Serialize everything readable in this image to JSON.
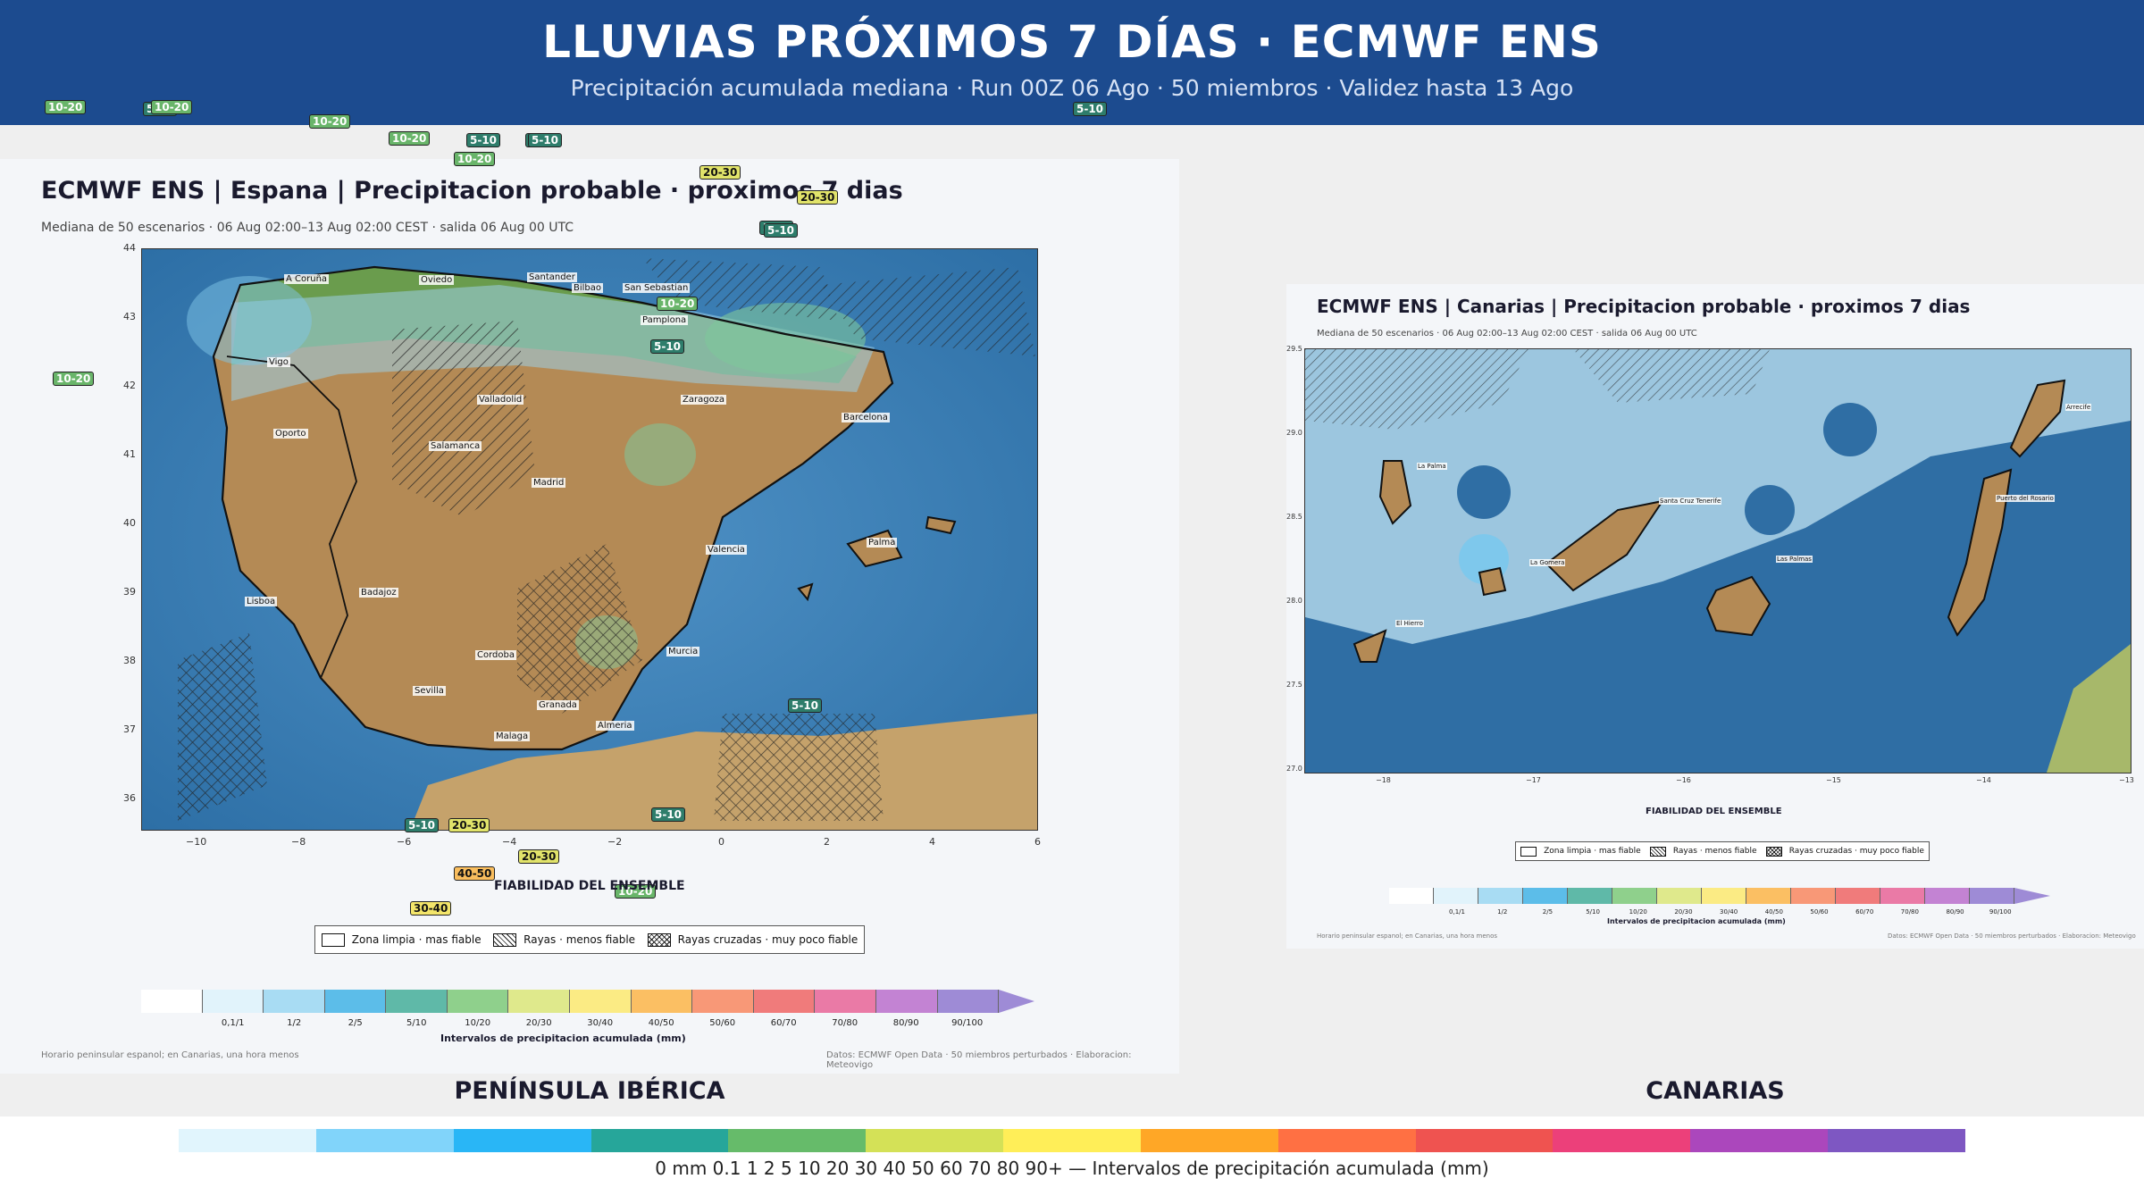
{
  "header": {
    "title": "LLUVIAS PRÓXIMOS 7 DÍAS · ECMWF ENS",
    "subtitle": "Precipitación acumulada mediana · Run 00Z 06 Ago · 50 miembros · Validez hasta 13 Ago"
  },
  "iberia": {
    "title": "ECMWF ENS | Espana | Precipitacion probable · proximos 7 dias",
    "subtitle": "Mediana de 50 escenarios · 06 Aug 02:00–13 Aug 02:00 CEST · salida 06 Aug 00 UTC",
    "lat_ticks": [
      "44",
      "43",
      "42",
      "41",
      "40",
      "39",
      "38",
      "37",
      "36"
    ],
    "lon_ticks": [
      "−10",
      "−8",
      "−6",
      "−4",
      "−2",
      "0",
      "2",
      "4",
      "6"
    ],
    "cities": [
      "A Coruña",
      "Oviedo",
      "Santander",
      "Bilbao",
      "San Sebastian",
      "Pamplona",
      "Vigo",
      "Valladolid",
      "Zaragoza",
      "Barcelona",
      "Oporto",
      "Salamanca",
      "Madrid",
      "Palma",
      "Valencia",
      "Lisboa",
      "Badajoz",
      "Cordoba",
      "Murcia",
      "Sevilla",
      "Granada",
      "Almeria",
      "Malaga"
    ],
    "badges": [
      "10-20",
      "10-20",
      "10-20",
      "5-10",
      "20-30",
      "20-30",
      "5-10",
      "5-10",
      "10-20",
      "5-10",
      "10-20",
      "5-10",
      "10-20",
      "5-10",
      "5-10",
      "5-10",
      "5-10",
      "5-10",
      "20-30",
      "20-30",
      "40-50",
      "30-40",
      "10-20",
      "5-10",
      "10-20"
    ],
    "fiabilidad_title": "FIABILIDAD DEL ENSEMBLE",
    "legend": [
      "Zona limpia · mas fiable",
      "Rayas · menos fiable",
      "Rayas cruzadas · muy poco fiable"
    ],
    "cbar_labels": [
      "0,1/1",
      "1/2",
      "2/5",
      "5/10",
      "10/20",
      "20/30",
      "30/40",
      "40/50",
      "50/60",
      "60/70",
      "70/80",
      "80/90",
      "90/100"
    ],
    "cbar_title": "Intervalos de precipitacion acumulada (mm)",
    "foot_left": "Horario peninsular espanol; en Canarias, una hora menos",
    "foot_right": "Datos: ECMWF Open Data · 50 miembros perturbados · Elaboracion: Meteovigo",
    "region_label": "PENÍNSULA IBÉRICA"
  },
  "canarias": {
    "title": "ECMWF ENS | Canarias | Precipitacion probable · proximos 7 dias",
    "subtitle": "Mediana de 50 escenarios · 06 Aug 02:00–13 Aug 02:00 CEST · salida 06 Aug 00 UTC",
    "lat_ticks": [
      "29.5",
      "29.0",
      "28.5",
      "28.0",
      "27.5",
      "27.0"
    ],
    "lon_ticks": [
      "−18",
      "−17",
      "−16",
      "−15",
      "−14",
      "−13"
    ],
    "cities": [
      "Arrecife",
      "La Palma",
      "Santa Cruz Tenerife",
      "Puerto del Rosario",
      "La Gomera",
      "Las Palmas",
      "El Hierro"
    ],
    "fiabilidad_title": "FIABILIDAD DEL ENSEMBLE",
    "legend": [
      "Zona limpia · mas fiable",
      "Rayas · menos fiable",
      "Rayas cruzadas · muy poco fiable"
    ],
    "cbar_labels": [
      "0,1/1",
      "1/2",
      "2/5",
      "5/10",
      "10/20",
      "20/30",
      "30/40",
      "40/50",
      "50/60",
      "60/70",
      "70/80",
      "80/90",
      "90/100"
    ],
    "cbar_title": "Intervalos de precipitacion acumulada (mm)",
    "foot_left": "Horario peninsular espanol; en Canarias, una hora menos",
    "foot_right": "Datos: ECMWF Open Data · 50 miembros perturbados · Elaboracion: Meteovigo",
    "region_label": "CANARIAS"
  },
  "palette": [
    "#ffffff",
    "#e1f3fb",
    "#a8dcf3",
    "#5cbde9",
    "#5fb9a8",
    "#8fd08c",
    "#dfe98c",
    "#fbeb84",
    "#fbbf63",
    "#f89877",
    "#f07b7b",
    "#ea7aa6",
    "#c383d3",
    "#9e8bd6"
  ],
  "bottom_colors": [
    "#e1f5fd",
    "#81d4fa",
    "#29b6f6",
    "#26a69a",
    "#66bb6a",
    "#d4e157",
    "#ffee58",
    "#ffa726",
    "#ff7043",
    "#ef5350",
    "#ec407a",
    "#ab47bc",
    "#7e57c2"
  ],
  "bottom_scale": "0 mm   0.1   1   2   5   10   20   30   40   50   60   70   80   90+  — Intervalos de precipitación acumulada (mm)"
}
